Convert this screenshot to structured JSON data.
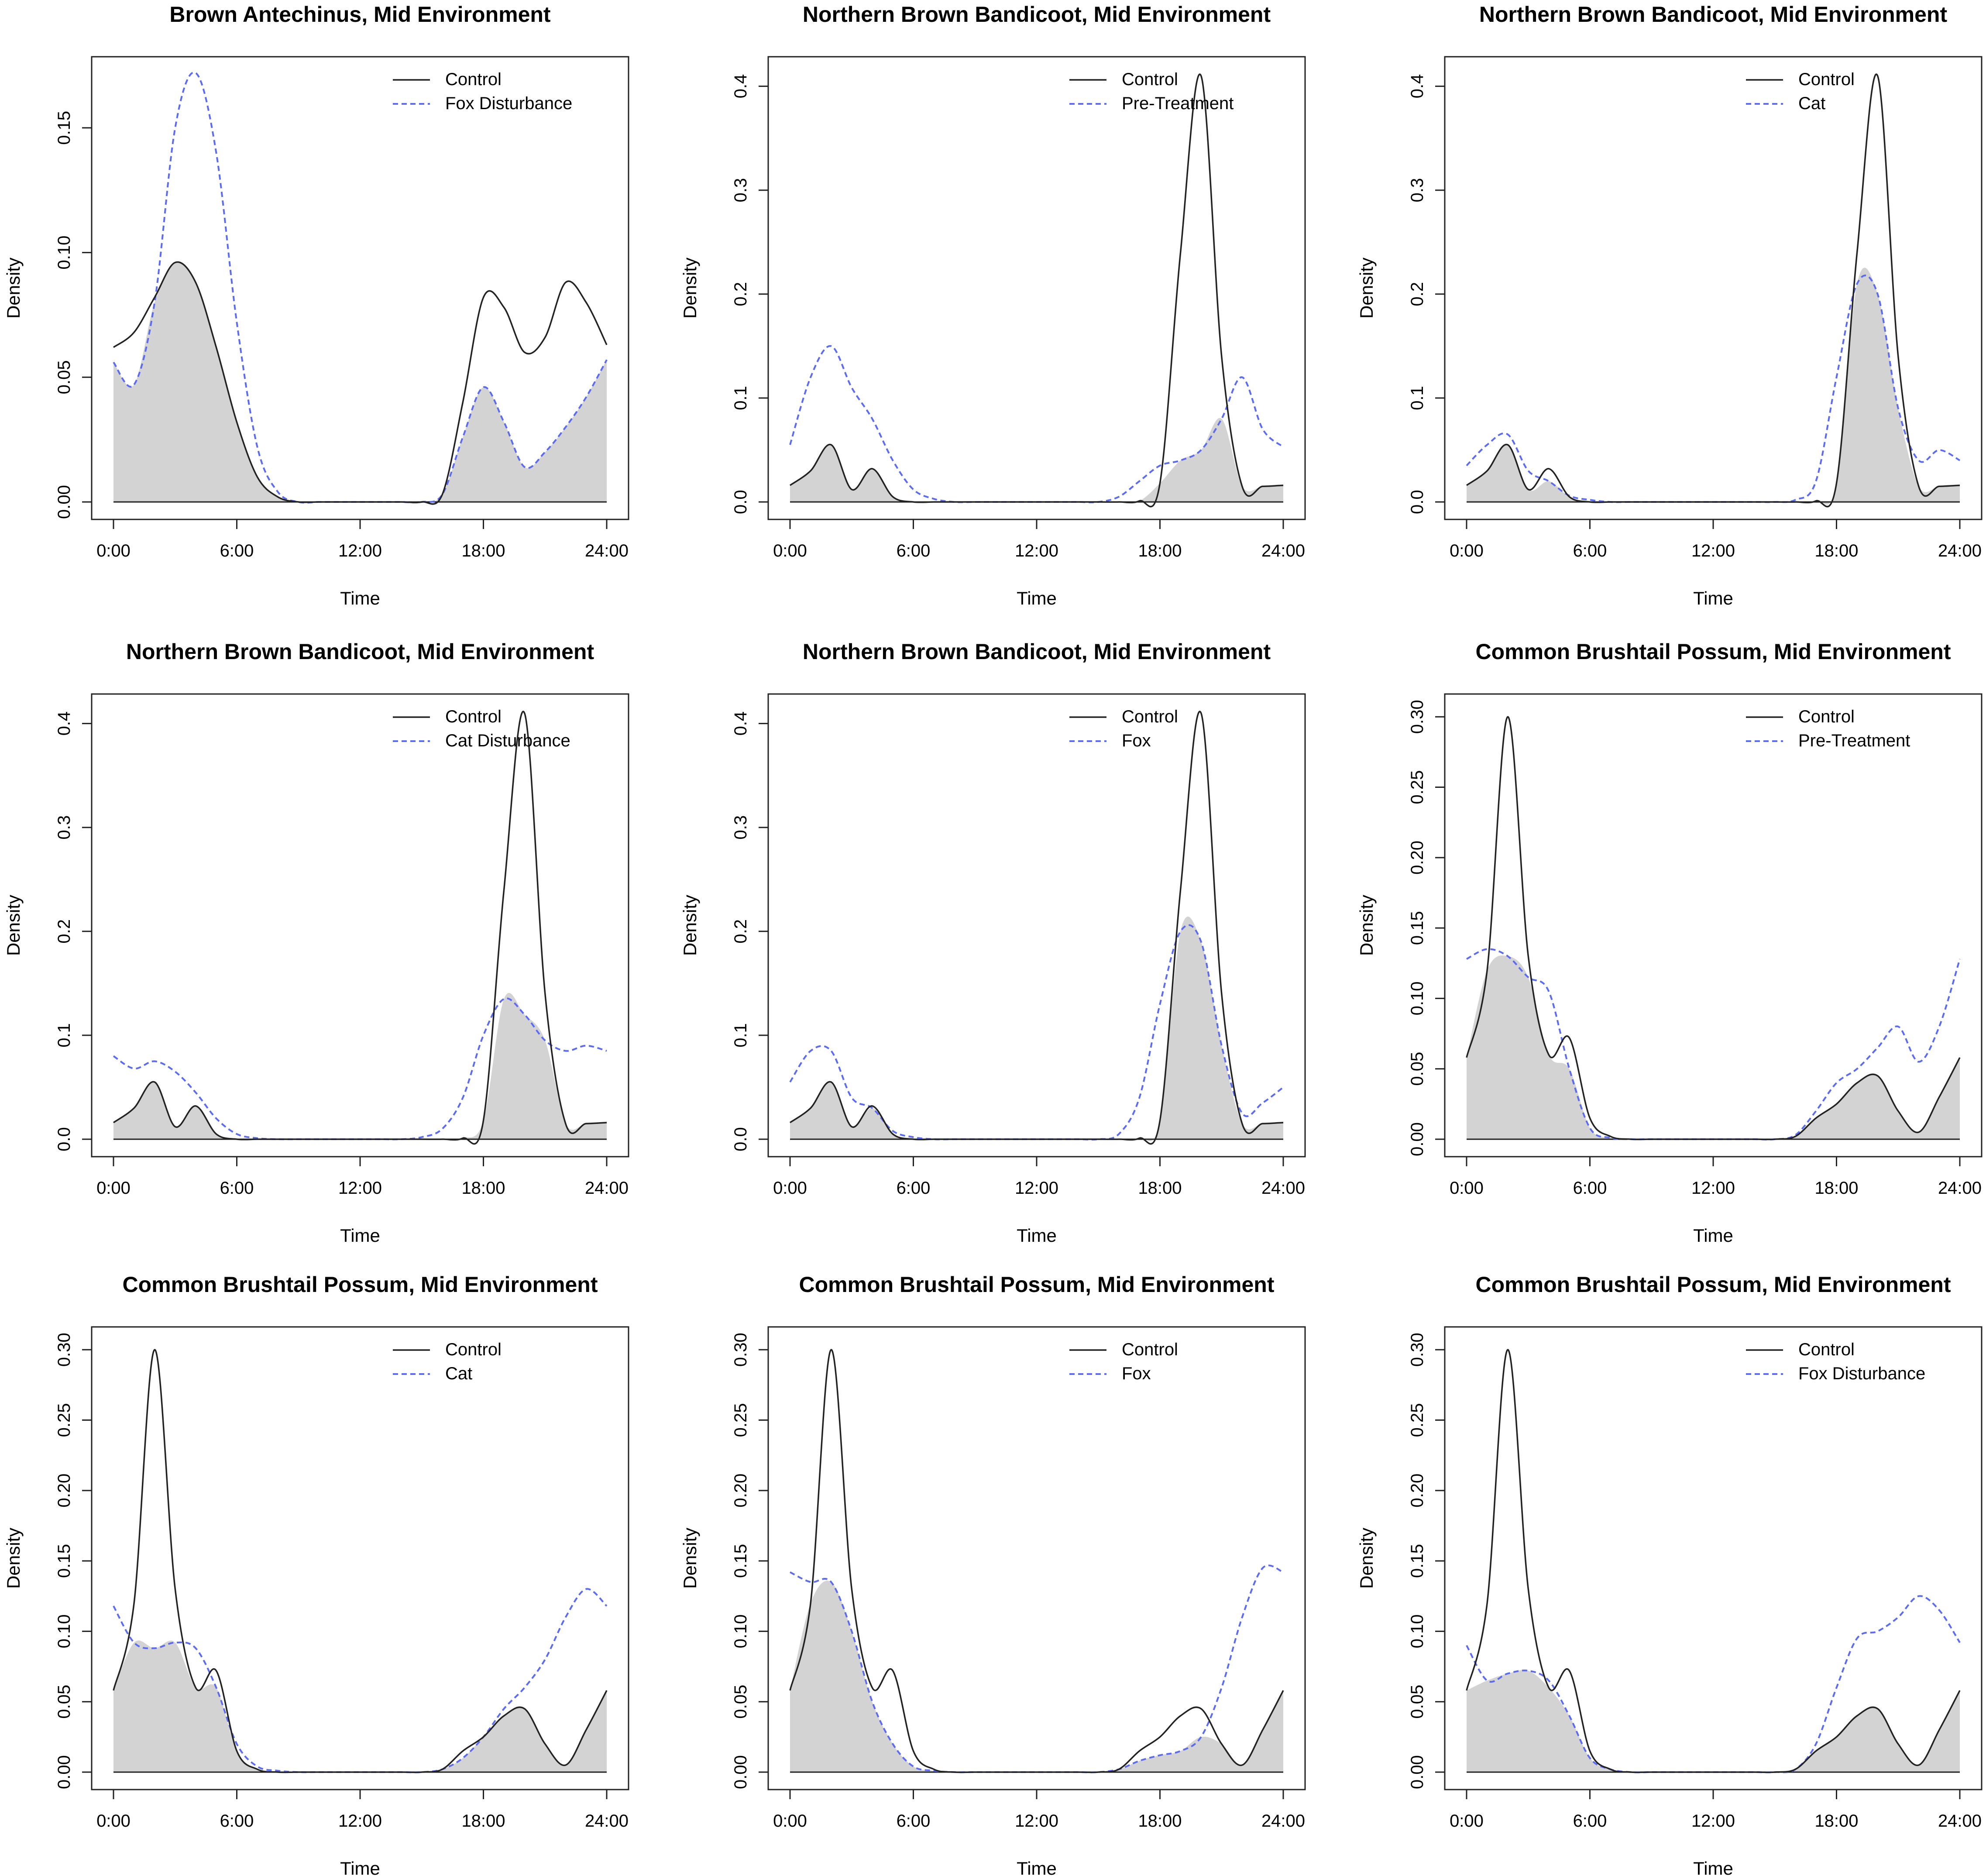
{
  "figure": {
    "x_tick_labels": [
      "0:00",
      "6:00",
      "12:00",
      "18:00",
      "24:00"
    ],
    "x_ticks": [
      0,
      6,
      12,
      18,
      24
    ],
    "colors": {
      "control_line": "#222222",
      "comparison_line": "#5b6cf2",
      "overlap_fill": "#d3d3d3"
    }
  },
  "chart_data": [
    {
      "type": "line",
      "title": "Brown Antechinus, Mid Environment",
      "xlabel": "Time",
      "ylabel": "Density",
      "xlim": [
        0,
        24
      ],
      "ylim": [
        0,
        0.175
      ],
      "yticks": [
        0.0,
        0.05,
        0.1,
        0.15
      ],
      "ytick_labels": [
        "0.00",
        "0.05",
        "0.10",
        "0.15"
      ],
      "legend_position": "top-right",
      "x": [
        0,
        1,
        2,
        3,
        4,
        5,
        6,
        7,
        8,
        9,
        10,
        11,
        12,
        13,
        14,
        15,
        16,
        17,
        18,
        19,
        20,
        21,
        22,
        23,
        24
      ],
      "series": [
        {
          "name": "Control",
          "style": "solid",
          "values": [
            0.062,
            0.068,
            0.082,
            0.096,
            0.088,
            0.062,
            0.032,
            0.01,
            0.002,
            0,
            0,
            0,
            0,
            0,
            0,
            0,
            0.003,
            0.04,
            0.082,
            0.078,
            0.06,
            0.066,
            0.088,
            0.08,
            0.063
          ]
        },
        {
          "name": "Fox Disturbance",
          "style": "dashed",
          "values": [
            0.056,
            0.047,
            0.08,
            0.15,
            0.172,
            0.14,
            0.072,
            0.022,
            0.004,
            0,
            0,
            0,
            0,
            0,
            0,
            0,
            0.003,
            0.026,
            0.046,
            0.032,
            0.014,
            0.02,
            0.03,
            0.042,
            0.057
          ]
        }
      ]
    },
    {
      "type": "line",
      "title": "Northern Brown Bandicoot, Mid Environment",
      "xlabel": "Time",
      "ylabel": "Density",
      "xlim": [
        0,
        24
      ],
      "ylim": [
        0,
        0.42
      ],
      "yticks": [
        0.0,
        0.1,
        0.2,
        0.3,
        0.4
      ],
      "ytick_labels": [
        "0.0",
        "0.1",
        "0.2",
        "0.3",
        "0.4"
      ],
      "legend_position": "top-right",
      "x": [
        0,
        1,
        2,
        3,
        4,
        5,
        6,
        7,
        8,
        9,
        10,
        11,
        12,
        13,
        14,
        15,
        16,
        17,
        18,
        19,
        20,
        21,
        22,
        23,
        24
      ],
      "series": [
        {
          "name": "Control",
          "style": "solid",
          "values": [
            0.016,
            0.03,
            0.055,
            0.012,
            0.032,
            0.005,
            0,
            0,
            0,
            0,
            0,
            0,
            0,
            0,
            0,
            0,
            0,
            0.001,
            0.018,
            0.24,
            0.41,
            0.14,
            0.015,
            0.015,
            0.016
          ]
        },
        {
          "name": "Pre-Treatment",
          "style": "dashed",
          "values": [
            0.055,
            0.12,
            0.15,
            0.11,
            0.08,
            0.04,
            0.012,
            0.003,
            0,
            0,
            0,
            0,
            0,
            0,
            0,
            0,
            0.005,
            0.02,
            0.035,
            0.04,
            0.05,
            0.08,
            0.12,
            0.07,
            0.053
          ]
        }
      ]
    },
    {
      "type": "line",
      "title": "Northern Brown Bandicoot, Mid Environment",
      "xlabel": "Time",
      "ylabel": "Density",
      "xlim": [
        0,
        24
      ],
      "ylim": [
        0,
        0.42
      ],
      "yticks": [
        0.0,
        0.1,
        0.2,
        0.3,
        0.4
      ],
      "ytick_labels": [
        "0.0",
        "0.1",
        "0.2",
        "0.3",
        "0.4"
      ],
      "legend_position": "top-right",
      "x": [
        0,
        1,
        2,
        3,
        4,
        5,
        6,
        7,
        8,
        9,
        10,
        11,
        12,
        13,
        14,
        15,
        16,
        17,
        18,
        19,
        20,
        21,
        22,
        23,
        24
      ],
      "series": [
        {
          "name": "Control",
          "style": "solid",
          "values": [
            0.016,
            0.03,
            0.055,
            0.012,
            0.032,
            0.005,
            0,
            0,
            0,
            0,
            0,
            0,
            0,
            0,
            0,
            0,
            0,
            0.001,
            0.018,
            0.24,
            0.41,
            0.14,
            0.015,
            0.015,
            0.016
          ]
        },
        {
          "name": "Cat",
          "style": "dashed",
          "values": [
            0.035,
            0.055,
            0.065,
            0.03,
            0.02,
            0.006,
            0.002,
            0,
            0,
            0,
            0,
            0,
            0,
            0,
            0,
            0,
            0.002,
            0.02,
            0.12,
            0.21,
            0.2,
            0.09,
            0.04,
            0.05,
            0.04
          ]
        }
      ]
    },
    {
      "type": "line",
      "title": "Northern Brown Bandicoot, Mid Environment",
      "xlabel": "Time",
      "ylabel": "Density",
      "xlim": [
        0,
        24
      ],
      "ylim": [
        0,
        0.42
      ],
      "yticks": [
        0.0,
        0.1,
        0.2,
        0.3,
        0.4
      ],
      "ytick_labels": [
        "0.0",
        "0.1",
        "0.2",
        "0.3",
        "0.4"
      ],
      "legend_position": "top-right",
      "x": [
        0,
        1,
        2,
        3,
        4,
        5,
        6,
        7,
        8,
        9,
        10,
        11,
        12,
        13,
        14,
        15,
        16,
        17,
        18,
        19,
        20,
        21,
        22,
        23,
        24
      ],
      "series": [
        {
          "name": "Control",
          "style": "solid",
          "values": [
            0.016,
            0.03,
            0.055,
            0.012,
            0.032,
            0.005,
            0,
            0,
            0,
            0,
            0,
            0,
            0,
            0,
            0,
            0,
            0,
            0.001,
            0.018,
            0.24,
            0.41,
            0.14,
            0.015,
            0.015,
            0.016
          ]
        },
        {
          "name": "Cat Disturbance",
          "style": "dashed",
          "values": [
            0.08,
            0.068,
            0.075,
            0.065,
            0.045,
            0.02,
            0.005,
            0.001,
            0,
            0,
            0,
            0,
            0,
            0,
            0,
            0.002,
            0.01,
            0.04,
            0.1,
            0.135,
            0.12,
            0.095,
            0.085,
            0.09,
            0.085
          ]
        }
      ]
    },
    {
      "type": "line",
      "title": "Northern Brown Bandicoot, Mid Environment",
      "xlabel": "Time",
      "ylabel": "Density",
      "xlim": [
        0,
        24
      ],
      "ylim": [
        0,
        0.42
      ],
      "yticks": [
        0.0,
        0.1,
        0.2,
        0.3,
        0.4
      ],
      "ytick_labels": [
        "0.0",
        "0.1",
        "0.2",
        "0.3",
        "0.4"
      ],
      "legend_position": "top-right",
      "x": [
        0,
        1,
        2,
        3,
        4,
        5,
        6,
        7,
        8,
        9,
        10,
        11,
        12,
        13,
        14,
        15,
        16,
        17,
        18,
        19,
        20,
        21,
        22,
        23,
        24
      ],
      "series": [
        {
          "name": "Control",
          "style": "solid",
          "values": [
            0.016,
            0.03,
            0.055,
            0.012,
            0.032,
            0.005,
            0,
            0,
            0,
            0,
            0,
            0,
            0,
            0,
            0,
            0,
            0,
            0.001,
            0.018,
            0.24,
            0.41,
            0.14,
            0.015,
            0.015,
            0.016
          ]
        },
        {
          "name": "Fox",
          "style": "dashed",
          "values": [
            0.055,
            0.085,
            0.085,
            0.04,
            0.03,
            0.008,
            0.002,
            0,
            0,
            0,
            0,
            0,
            0,
            0,
            0,
            0,
            0.005,
            0.04,
            0.13,
            0.2,
            0.19,
            0.09,
            0.025,
            0.035,
            0.05
          ]
        }
      ]
    },
    {
      "type": "line",
      "title": "Common Brushtail Possum, Mid Environment",
      "xlabel": "Time",
      "ylabel": "Density",
      "xlim": [
        0,
        24
      ],
      "ylim": [
        0,
        0.31
      ],
      "yticks": [
        0.0,
        0.05,
        0.1,
        0.15,
        0.2,
        0.25,
        0.3
      ],
      "ytick_labels": [
        "0.00",
        "0.05",
        "0.10",
        "0.15",
        "0.20",
        "0.25",
        "0.30"
      ],
      "legend_position": "top-right",
      "x": [
        0,
        1,
        2,
        3,
        4,
        5,
        6,
        7,
        8,
        9,
        10,
        11,
        12,
        13,
        14,
        15,
        16,
        17,
        18,
        19,
        20,
        21,
        22,
        23,
        24
      ],
      "series": [
        {
          "name": "Control",
          "style": "solid",
          "values": [
            0.058,
            0.12,
            0.3,
            0.13,
            0.06,
            0.072,
            0.015,
            0.002,
            0,
            0,
            0,
            0,
            0,
            0,
            0,
            0,
            0.002,
            0.015,
            0.025,
            0.04,
            0.045,
            0.02,
            0.005,
            0.03,
            0.058
          ]
        },
        {
          "name": "Pre-Treatment",
          "style": "dashed",
          "values": [
            0.128,
            0.135,
            0.13,
            0.115,
            0.105,
            0.05,
            0.008,
            0.001,
            0,
            0,
            0,
            0,
            0,
            0,
            0,
            0,
            0.003,
            0.02,
            0.04,
            0.05,
            0.065,
            0.08,
            0.055,
            0.08,
            0.128
          ]
        }
      ]
    },
    {
      "type": "line",
      "title": "Common Brushtail Possum, Mid Environment",
      "xlabel": "Time",
      "ylabel": "Density",
      "xlim": [
        0,
        24
      ],
      "ylim": [
        0,
        0.31
      ],
      "yticks": [
        0.0,
        0.05,
        0.1,
        0.15,
        0.2,
        0.25,
        0.3
      ],
      "ytick_labels": [
        "0.00",
        "0.05",
        "0.10",
        "0.15",
        "0.20",
        "0.25",
        "0.30"
      ],
      "legend_position": "top-right",
      "x": [
        0,
        1,
        2,
        3,
        4,
        5,
        6,
        7,
        8,
        9,
        10,
        11,
        12,
        13,
        14,
        15,
        16,
        17,
        18,
        19,
        20,
        21,
        22,
        23,
        24
      ],
      "series": [
        {
          "name": "Control",
          "style": "solid",
          "values": [
            0.058,
            0.12,
            0.3,
            0.13,
            0.06,
            0.072,
            0.015,
            0.002,
            0,
            0,
            0,
            0,
            0,
            0,
            0,
            0,
            0.002,
            0.015,
            0.025,
            0.04,
            0.045,
            0.02,
            0.005,
            0.03,
            0.058
          ]
        },
        {
          "name": "Cat",
          "style": "dashed",
          "values": [
            0.118,
            0.092,
            0.088,
            0.092,
            0.088,
            0.06,
            0.02,
            0.004,
            0.001,
            0,
            0,
            0,
            0,
            0,
            0,
            0,
            0.002,
            0.01,
            0.025,
            0.045,
            0.06,
            0.08,
            0.11,
            0.13,
            0.118
          ]
        }
      ]
    },
    {
      "type": "line",
      "title": "Common Brushtail Possum, Mid Environment",
      "xlabel": "Time",
      "ylabel": "Density",
      "xlim": [
        0,
        24
      ],
      "ylim": [
        0,
        0.31
      ],
      "yticks": [
        0.0,
        0.05,
        0.1,
        0.15,
        0.2,
        0.25,
        0.3
      ],
      "ytick_labels": [
        "0.00",
        "0.05",
        "0.10",
        "0.15",
        "0.20",
        "0.25",
        "0.30"
      ],
      "legend_position": "top-right",
      "x": [
        0,
        1,
        2,
        3,
        4,
        5,
        6,
        7,
        8,
        9,
        10,
        11,
        12,
        13,
        14,
        15,
        16,
        17,
        18,
        19,
        20,
        21,
        22,
        23,
        24
      ],
      "series": [
        {
          "name": "Control",
          "style": "solid",
          "values": [
            0.058,
            0.12,
            0.3,
            0.13,
            0.06,
            0.072,
            0.015,
            0.002,
            0,
            0,
            0,
            0,
            0,
            0,
            0,
            0,
            0.002,
            0.015,
            0.025,
            0.04,
            0.045,
            0.02,
            0.005,
            0.03,
            0.058
          ]
        },
        {
          "name": "Fox",
          "style": "dashed",
          "values": [
            0.142,
            0.135,
            0.135,
            0.1,
            0.05,
            0.02,
            0.004,
            0.001,
            0,
            0,
            0,
            0,
            0,
            0,
            0,
            0,
            0.002,
            0.008,
            0.012,
            0.015,
            0.025,
            0.06,
            0.11,
            0.145,
            0.142
          ]
        }
      ]
    },
    {
      "type": "line",
      "title": "Common Brushtail Possum, Mid Environment",
      "xlabel": "Time",
      "ylabel": "Density",
      "xlim": [
        0,
        24
      ],
      "ylim": [
        0,
        0.31
      ],
      "yticks": [
        0.0,
        0.05,
        0.1,
        0.15,
        0.2,
        0.25,
        0.3
      ],
      "ytick_labels": [
        "0.00",
        "0.05",
        "0.10",
        "0.15",
        "0.20",
        "0.25",
        "0.30"
      ],
      "legend_position": "top-right",
      "x": [
        0,
        1,
        2,
        3,
        4,
        5,
        6,
        7,
        8,
        9,
        10,
        11,
        12,
        13,
        14,
        15,
        16,
        17,
        18,
        19,
        20,
        21,
        22,
        23,
        24
      ],
      "series": [
        {
          "name": "Control",
          "style": "solid",
          "values": [
            0.058,
            0.12,
            0.3,
            0.13,
            0.06,
            0.072,
            0.015,
            0.002,
            0,
            0,
            0,
            0,
            0,
            0,
            0,
            0,
            0.002,
            0.015,
            0.025,
            0.04,
            0.045,
            0.02,
            0.005,
            0.03,
            0.058
          ]
        },
        {
          "name": "Fox Disturbance",
          "style": "dashed",
          "values": [
            0.09,
            0.065,
            0.07,
            0.072,
            0.065,
            0.04,
            0.01,
            0.002,
            0,
            0,
            0,
            0,
            0,
            0,
            0,
            0,
            0.002,
            0.02,
            0.06,
            0.095,
            0.1,
            0.11,
            0.125,
            0.115,
            0.092
          ]
        }
      ]
    }
  ]
}
